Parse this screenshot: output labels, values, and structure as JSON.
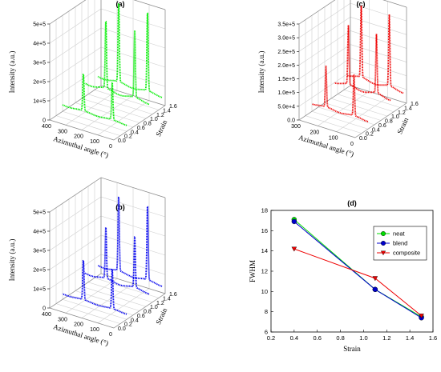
{
  "chart_data": [
    {
      "panel": "(a)",
      "type": "line",
      "dimensions": "3d",
      "color": "#00ee00",
      "zlabel": "Intensity (a.u.)",
      "xlabel": "Azimuthal angle (°)",
      "ylabel": "Strain",
      "z_ticks": [
        "0",
        "1e+5",
        "2e+5",
        "3e+5",
        "4e+5",
        "5e+5"
      ],
      "x_ticks": [
        "400",
        "300",
        "200",
        "100",
        "0"
      ],
      "y_ticks": [
        "0.0",
        "0.2",
        "0.4",
        "0.6",
        "0.8",
        "1.0",
        "1.2",
        "1.4",
        "1.6"
      ],
      "zlim": [
        0,
        500000
      ],
      "xlim": [
        0,
        400
      ],
      "ylim": [
        0,
        1.6
      ],
      "strains": [
        0.4,
        1.1,
        1.5
      ],
      "peak_angles": [
        90,
        270
      ],
      "series": [
        {
          "strain": 0.4,
          "baseline": 35000,
          "peak": 230000
        },
        {
          "strain": 1.1,
          "baseline": 70000,
          "peak": 430000
        },
        {
          "strain": 1.5,
          "baseline": 60000,
          "peak": 480000
        }
      ]
    },
    {
      "panel": "(b)",
      "type": "line",
      "dimensions": "3d",
      "color": "#0000ee",
      "zlabel": "Intensity (a.u.)",
      "xlabel": "Azimuthal angle (°)",
      "ylabel": "Strain",
      "z_ticks": [
        "0",
        "1e+5",
        "2e+5",
        "3e+5",
        "4e+5",
        "5e+5"
      ],
      "x_ticks": [
        "400",
        "300",
        "200",
        "100",
        "0"
      ],
      "y_ticks": [
        "0.0",
        "0.2",
        "0.4",
        "0.6",
        "0.8",
        "1.0",
        "1.2",
        "1.4",
        "1.6"
      ],
      "zlim": [
        0,
        500000
      ],
      "xlim": [
        0,
        400
      ],
      "ylim": [
        0,
        1.6
      ],
      "strains": [
        0.4,
        1.1,
        1.5
      ],
      "peak_angles": [
        90,
        270
      ],
      "series": [
        {
          "strain": 0.4,
          "baseline": 30000,
          "peak": 240000
        },
        {
          "strain": 1.1,
          "baseline": 60000,
          "peak": 330000
        },
        {
          "strain": 1.5,
          "baseline": 55000,
          "peak": 450000
        }
      ]
    },
    {
      "panel": "(c)",
      "type": "line",
      "dimensions": "3d",
      "color": "#ee0000",
      "zlabel": "Intensity (a.u.)",
      "xlabel": "Azimuthal angle (°)",
      "ylabel": "Strain",
      "z_ticks": [
        "0.0",
        "5.0e+4",
        "1.0e+5",
        "1.5e+5",
        "2.0e+5",
        "2.5e+5",
        "3.0e+5",
        "3.5e+5"
      ],
      "x_ticks": [
        "300",
        "200",
        "100",
        "0"
      ],
      "y_ticks": [
        "0.0",
        "0.2",
        "0.4",
        "0.6",
        "0.8",
        "1.0",
        "1.2",
        "1.4",
        "1.6"
      ],
      "zlim": [
        0,
        350000
      ],
      "xlim": [
        0,
        360
      ],
      "ylim": [
        0,
        1.6
      ],
      "strains": [
        0.4,
        1.1,
        1.5
      ],
      "peak_angles": [
        90,
        270
      ],
      "series": [
        {
          "strain": 0.4,
          "baseline": 30000,
          "peak": 180000
        },
        {
          "strain": 1.1,
          "baseline": 55000,
          "peak": 270000
        },
        {
          "strain": 1.5,
          "baseline": 50000,
          "peak": 310000
        }
      ]
    },
    {
      "panel": "(d)",
      "type": "line",
      "xlabel": "Strain",
      "ylabel": "FWHM",
      "xlim": [
        0.2,
        1.6
      ],
      "ylim": [
        6,
        18
      ],
      "x_ticks": [
        "0.2",
        "0.4",
        "0.6",
        "0.8",
        "1.0",
        "1.2",
        "1.4",
        "1.6"
      ],
      "y_ticks": [
        "6",
        "8",
        "10",
        "12",
        "14",
        "16",
        "18"
      ],
      "legend": "top-right",
      "series": [
        {
          "name": "neat",
          "color": "#00dd00",
          "marker": "circle",
          "x": [
            0.4,
            1.1,
            1.5
          ],
          "y": [
            17.1,
            10.2,
            7.5
          ]
        },
        {
          "name": "blend",
          "color": "#0000cc",
          "marker": "circle",
          "x": [
            0.4,
            1.1,
            1.5
          ],
          "y": [
            16.9,
            10.2,
            7.4
          ]
        },
        {
          "name": "composite",
          "color": "#ee0000",
          "marker": "triangle-down",
          "x": [
            0.4,
            1.1,
            1.5
          ],
          "y": [
            14.2,
            11.3,
            7.6
          ]
        }
      ]
    }
  ]
}
